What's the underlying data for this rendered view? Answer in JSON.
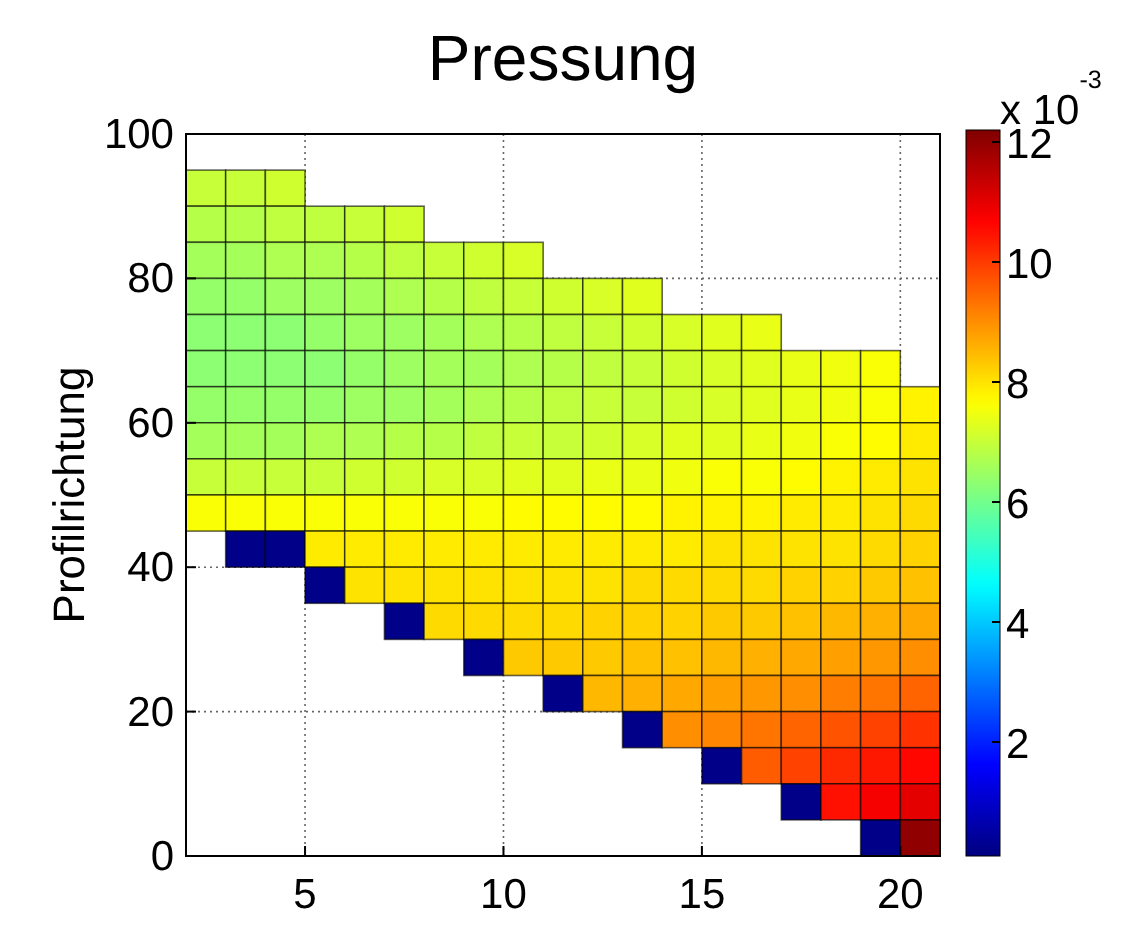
{
  "chart_data": {
    "type": "heatmap",
    "title": "Pressung",
    "ylabel": "Profilrichtung",
    "clabel": "x 10$^{-3}$",
    "x": [
      2.5,
      3.5,
      4.5,
      5.5,
      6.5,
      7.5,
      8.5,
      9.5,
      10.5,
      11.5,
      12.5,
      13.5,
      14.5,
      15.5,
      16.5,
      17.5,
      18.5,
      19.5,
      20.5
    ],
    "y": [
      92.5,
      87.5,
      82.5,
      77.5,
      72.5,
      67.5,
      62.5,
      57.5,
      52.5,
      47.5,
      42.5,
      37.5,
      32.5,
      27.5,
      22.5,
      17.5,
      12.5,
      7.5,
      2.5
    ],
    "xlim": [
      2,
      21
    ],
    "xticks": [
      5,
      10,
      15,
      20
    ],
    "ylim": [
      0,
      100
    ],
    "yticks": [
      0,
      20,
      40,
      60,
      80,
      100
    ],
    "grid": true,
    "clim": [
      0.1,
      12.2
    ],
    "cticks": [
      2,
      4,
      6,
      8,
      10,
      12
    ],
    "cells": [
      [
        7.0,
        7.0,
        7.1,
        null,
        null,
        null,
        null,
        null,
        null,
        null,
        null,
        null,
        null,
        null,
        null,
        null,
        null,
        null,
        null
      ],
      [
        6.8,
        6.8,
        6.9,
        6.9,
        7.0,
        7.1,
        null,
        null,
        null,
        null,
        null,
        null,
        null,
        null,
        null,
        null,
        null,
        null,
        null
      ],
      [
        6.6,
        6.6,
        6.7,
        6.7,
        6.8,
        6.9,
        7.0,
        7.1,
        7.2,
        null,
        null,
        null,
        null,
        null,
        null,
        null,
        null,
        null,
        null
      ],
      [
        6.4,
        6.4,
        6.5,
        6.5,
        6.6,
        6.7,
        6.8,
        6.9,
        7.0,
        7.1,
        7.2,
        7.3,
        null,
        null,
        null,
        null,
        null,
        null,
        null
      ],
      [
        6.3,
        6.3,
        6.3,
        6.4,
        6.5,
        6.5,
        6.6,
        6.7,
        6.8,
        6.9,
        7.0,
        7.1,
        7.2,
        7.3,
        7.4,
        null,
        null,
        null,
        null
      ],
      [
        6.3,
        6.3,
        6.3,
        6.3,
        6.4,
        6.5,
        6.6,
        6.6,
        6.7,
        6.8,
        6.9,
        7.0,
        7.1,
        7.2,
        7.3,
        7.4,
        7.5,
        7.6,
        null
      ],
      [
        6.4,
        6.4,
        6.4,
        6.4,
        6.5,
        6.5,
        6.6,
        6.7,
        6.8,
        6.9,
        7.0,
        7.0,
        7.1,
        7.2,
        7.3,
        7.4,
        7.5,
        7.6,
        7.8
      ],
      [
        6.6,
        6.6,
        6.6,
        6.7,
        6.7,
        6.8,
        6.8,
        6.9,
        7.0,
        7.0,
        7.1,
        7.2,
        7.3,
        7.3,
        7.4,
        7.5,
        7.6,
        7.7,
        7.9
      ],
      [
        7.0,
        7.0,
        7.0,
        7.0,
        7.1,
        7.1,
        7.2,
        7.2,
        7.3,
        7.3,
        7.4,
        7.4,
        7.5,
        7.6,
        7.6,
        7.7,
        7.8,
        7.9,
        8.0
      ],
      [
        7.6,
        7.6,
        7.6,
        7.6,
        7.6,
        7.6,
        7.6,
        7.6,
        7.7,
        7.7,
        7.7,
        7.7,
        7.8,
        7.8,
        7.8,
        7.9,
        7.9,
        8.0,
        8.1
      ],
      [
        null,
        0.2,
        0.2,
        7.9,
        7.9,
        7.9,
        7.9,
        7.9,
        7.9,
        7.9,
        7.9,
        7.9,
        7.9,
        8.0,
        8.0,
        8.0,
        8.0,
        8.1,
        8.2
      ],
      [
        null,
        null,
        null,
        0.2,
        8.0,
        8.0,
        8.0,
        8.0,
        8.0,
        8.0,
        8.0,
        8.1,
        8.1,
        8.1,
        8.1,
        8.2,
        8.2,
        8.3,
        8.4
      ],
      [
        null,
        null,
        null,
        null,
        null,
        0.2,
        8.1,
        8.1,
        8.1,
        8.1,
        8.2,
        8.2,
        8.2,
        8.3,
        8.3,
        8.4,
        8.5,
        8.6,
        8.7
      ],
      [
        null,
        null,
        null,
        null,
        null,
        null,
        null,
        0.2,
        8.3,
        8.3,
        8.3,
        8.4,
        8.4,
        8.5,
        8.6,
        8.7,
        8.8,
        8.9,
        9.0
      ],
      [
        null,
        null,
        null,
        null,
        null,
        null,
        null,
        null,
        null,
        0.2,
        8.5,
        8.6,
        8.7,
        8.8,
        8.9,
        9.0,
        9.2,
        9.3,
        9.5
      ],
      [
        null,
        null,
        null,
        null,
        null,
        null,
        null,
        null,
        null,
        null,
        null,
        0.2,
        9.0,
        9.1,
        9.3,
        9.5,
        9.7,
        9.9,
        10.1
      ],
      [
        null,
        null,
        null,
        null,
        null,
        null,
        null,
        null,
        null,
        null,
        null,
        null,
        null,
        0.2,
        9.6,
        9.9,
        10.2,
        10.4,
        10.6
      ],
      [
        null,
        null,
        null,
        null,
        null,
        null,
        null,
        null,
        null,
        null,
        null,
        null,
        null,
        null,
        null,
        0.2,
        10.5,
        10.8,
        11.0
      ],
      [
        null,
        null,
        null,
        null,
        null,
        null,
        null,
        null,
        null,
        null,
        null,
        null,
        null,
        null,
        null,
        null,
        null,
        0.2,
        12.0
      ]
    ]
  }
}
